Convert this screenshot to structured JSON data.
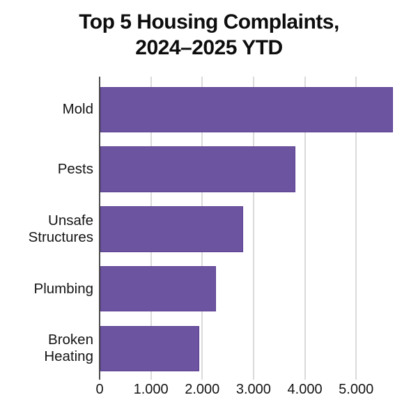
{
  "title": {
    "line1": "Top 5 Housing Complaints,",
    "line2": "2024–2025 YTD"
  },
  "chart_data": {
    "type": "bar",
    "orientation": "horizontal",
    "title": "Top 5 Housing Complaints, 2024–2025 YTD",
    "categories": [
      "Mold",
      "Pests",
      "Unsafe Structures",
      "Plumbing",
      "Broken Heating"
    ],
    "values": [
      5700,
      3800,
      2780,
      2250,
      1930
    ],
    "x_ticks": [
      0,
      1000,
      2000,
      3000,
      4000,
      5000
    ],
    "x_tick_labels": [
      "0",
      "1.000",
      "2.000",
      "3.000",
      "4.000",
      "5.000"
    ],
    "xlim": [
      0,
      5930
    ],
    "xlabel": "",
    "ylabel": "",
    "grid": true,
    "legend": false,
    "colors": {
      "bar_fill": "#6d54a1",
      "bar_border": "#5b3f91",
      "gridline": "#dadada",
      "axis_line": "#4a4a4a",
      "text": "#141414",
      "title_text": "#0d0d0d",
      "background": "#ffffff"
    }
  }
}
